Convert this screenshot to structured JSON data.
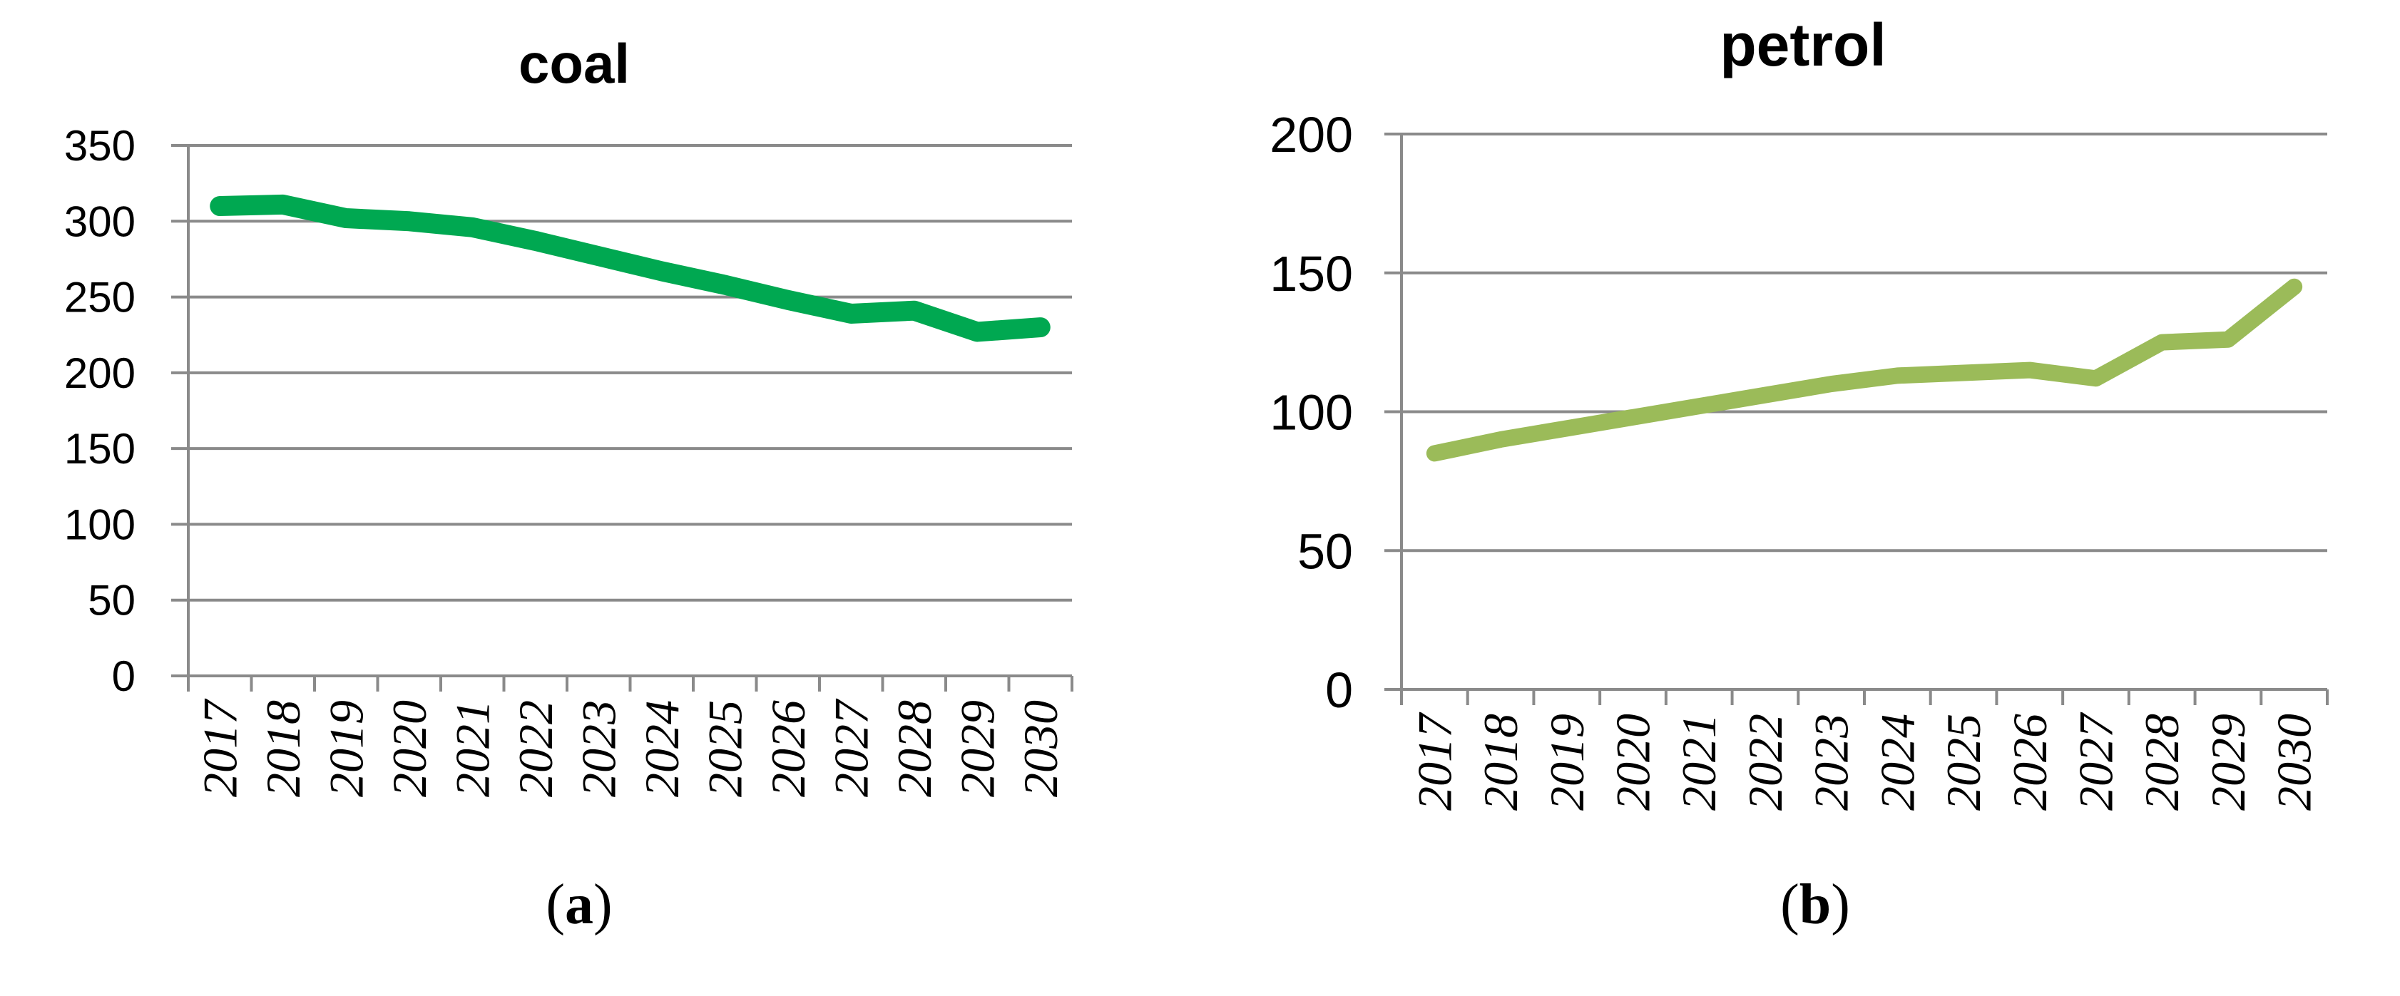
{
  "figure": {
    "background": "#FFFFFF",
    "grid_color": "#8A8A8A",
    "text_color": "#000000"
  },
  "chart_data": [
    {
      "type": "line",
      "title": "coal",
      "panel_label": {
        "prefix": "(",
        "letter": "a",
        "suffix": ")"
      },
      "categories": [
        "2017",
        "2018",
        "2019",
        "2020",
        "2021",
        "2022",
        "2023",
        "2024",
        "2025",
        "2026",
        "2027",
        "2028",
        "2029",
        "2030"
      ],
      "values": [
        310,
        311,
        302,
        300,
        296,
        287,
        277,
        267,
        258,
        248,
        239,
        241,
        227,
        230
      ],
      "ylim": [
        0,
        350
      ],
      "yticks": [
        0,
        50,
        100,
        150,
        200,
        250,
        300,
        350
      ],
      "xlabel": "",
      "ylabel": "",
      "grid": true,
      "legend": "none",
      "line_color": "#00A851"
    },
    {
      "type": "line",
      "title": "petrol",
      "panel_label": {
        "prefix": "(",
        "letter": "b",
        "suffix": ")"
      },
      "categories": [
        "2017",
        "2018",
        "2019",
        "2020",
        "2021",
        "2022",
        "2023",
        "2024",
        "2025",
        "2026",
        "2027",
        "2028",
        "2029",
        "2030"
      ],
      "values": [
        85,
        90,
        94,
        98,
        102,
        106,
        110,
        113,
        114,
        115,
        112,
        125,
        126,
        145
      ],
      "ylim": [
        0,
        200
      ],
      "yticks": [
        0,
        50,
        100,
        150,
        200
      ],
      "xlabel": "",
      "ylabel": "",
      "grid": true,
      "legend": "none",
      "line_color": "#9BBB59"
    }
  ]
}
